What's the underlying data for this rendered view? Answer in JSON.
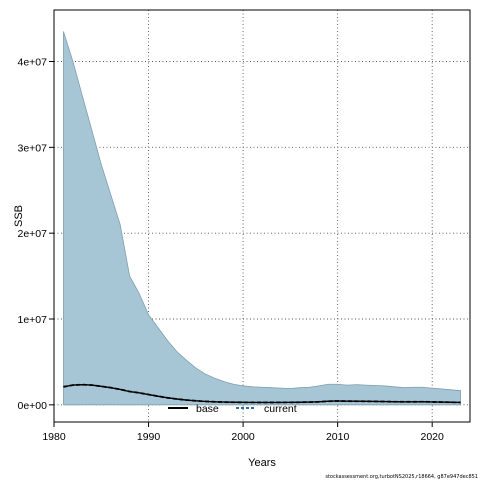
{
  "chart_data": {
    "type": "area",
    "xlabel": "Years",
    "ylabel": "SSB",
    "xlim": [
      1980,
      2024
    ],
    "ylim": [
      -2000000,
      46000000
    ],
    "x_ticks": [
      1980,
      1990,
      2000,
      2010,
      2020
    ],
    "y_ticks": [
      0,
      10000000,
      20000000,
      30000000,
      40000000
    ],
    "y_tick_labels": [
      "0e+00",
      "1e+07",
      "2e+07",
      "3e+07",
      "4e+07"
    ],
    "grid": true,
    "legend_position": "bottom-center",
    "legend": [
      {
        "label": "base",
        "style": "solid",
        "color": "#000000"
      },
      {
        "label": "current",
        "style": "dashed",
        "color": "#1a5b8c"
      }
    ],
    "band_color": "#a6c6d6",
    "x": [
      1981,
      1982,
      1983,
      1984,
      1985,
      1986,
      1987,
      1988,
      1989,
      1990,
      1991,
      1992,
      1993,
      1994,
      1995,
      1996,
      1997,
      1998,
      1999,
      2000,
      2001,
      2002,
      2003,
      2004,
      2005,
      2006,
      2007,
      2008,
      2009,
      2010,
      2011,
      2012,
      2013,
      2014,
      2015,
      2016,
      2017,
      2018,
      2019,
      2020,
      2021,
      2022,
      2023
    ],
    "series": [
      {
        "name": "current",
        "style": "dashed",
        "values": [
          2100000,
          2300000,
          2350000,
          2300000,
          2150000,
          2000000,
          1800000,
          1550000,
          1400000,
          1200000,
          1000000,
          820000,
          680000,
          560000,
          470000,
          400000,
          350000,
          320000,
          300000,
          290000,
          285000,
          280000,
          280000,
          285000,
          290000,
          300000,
          320000,
          350000,
          420000,
          450000,
          430000,
          420000,
          410000,
          400000,
          380000,
          360000,
          350000,
          350000,
          360000,
          340000,
          320000,
          300000,
          280000
        ]
      },
      {
        "name": "base",
        "style": "solid",
        "values": [
          2100000,
          2300000,
          2350000,
          2300000,
          2150000,
          2000000,
          1800000,
          1550000,
          1400000,
          1200000,
          1000000,
          820000,
          680000,
          560000,
          470000,
          400000,
          350000,
          320000,
          300000,
          290000,
          285000,
          280000,
          280000,
          285000,
          290000,
          300000,
          320000,
          350000,
          420000,
          450000,
          430000,
          420000,
          410000,
          400000,
          380000,
          360000,
          350000,
          350000,
          360000,
          340000,
          320000,
          300000,
          280000
        ]
      }
    ],
    "band": {
      "upper": [
        43500000,
        40000000,
        36000000,
        32000000,
        28000000,
        24500000,
        21000000,
        15000000,
        13000000,
        10500000,
        9000000,
        7500000,
        6200000,
        5200000,
        4300000,
        3600000,
        3100000,
        2700000,
        2400000,
        2200000,
        2100000,
        2050000,
        2000000,
        1950000,
        1900000,
        2000000,
        2050000,
        2200000,
        2400000,
        2400000,
        2300000,
        2350000,
        2300000,
        2250000,
        2200000,
        2100000,
        2000000,
        2050000,
        2050000,
        1950000,
        1850000,
        1750000,
        1650000
      ],
      "lower": [
        0,
        0,
        0,
        0,
        0,
        0,
        0,
        0,
        0,
        0,
        0,
        0,
        0,
        0,
        0,
        0,
        0,
        0,
        0,
        0,
        0,
        0,
        0,
        0,
        0,
        0,
        0,
        0,
        0,
        0,
        0,
        0,
        0,
        0,
        0,
        0,
        0,
        0,
        0,
        0,
        0,
        0,
        0
      ]
    }
  },
  "footnote": "stockassessment.org,turbotNS2025,r18664, g87e947dec851"
}
